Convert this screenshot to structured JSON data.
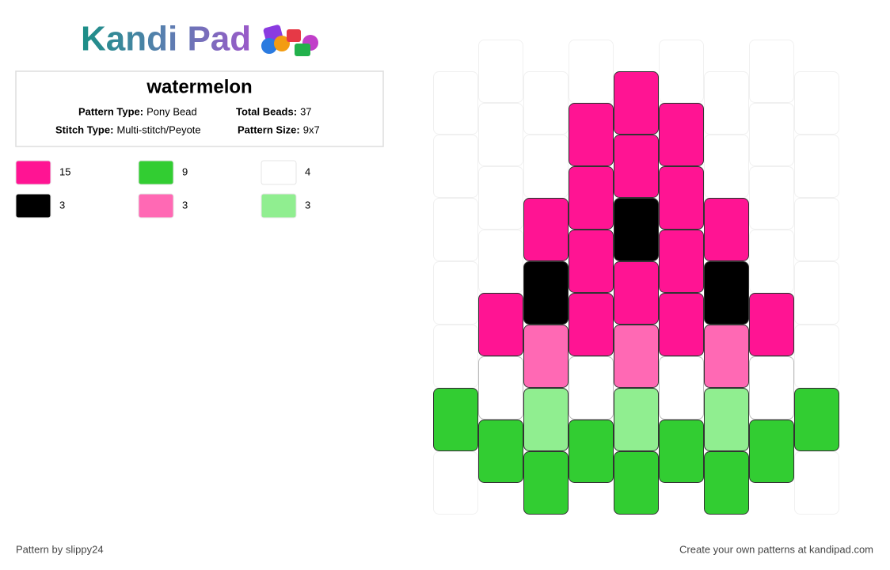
{
  "header": {
    "logo": "Kandi Pad"
  },
  "info": {
    "title": "watermelon",
    "fields": [
      {
        "label": "Pattern Type:",
        "value": "Pony Bead"
      },
      {
        "label": "Total Beads:",
        "value": 37
      },
      {
        "label": "Stitch Type:",
        "value": "Multi-stitch/Peyote"
      },
      {
        "label": "Pattern Size:",
        "value": "9x7"
      }
    ]
  },
  "legend": [
    {
      "color": "#ff1493",
      "count": 15
    },
    {
      "color": "#32cd32",
      "count": 9
    },
    {
      "color": "#ffffff",
      "count": 4
    },
    {
      "color": "#000000",
      "count": 3
    },
    {
      "color": "#ff69b4",
      "count": 3
    },
    {
      "color": "#90ee90",
      "count": 3
    }
  ],
  "pattern": {
    "columns": [
      [
        null,
        null,
        null,
        null,
        null,
        "#32cd32",
        null
      ],
      [
        null,
        null,
        null,
        null,
        "#ff1493",
        "#ffffff",
        "#32cd32"
      ],
      [
        null,
        null,
        "#ff1493",
        "#000000",
        "#ff69b4",
        "#90ee90",
        "#32cd32"
      ],
      [
        null,
        "#ff1493",
        "#ff1493",
        "#ff1493",
        "#ff1493",
        "#ffffff",
        "#32cd32"
      ],
      [
        "#ff1493",
        "#ff1493",
        "#000000",
        "#ff1493",
        "#ff69b4",
        "#90ee90",
        "#32cd32"
      ],
      [
        null,
        "#ff1493",
        "#ff1493",
        "#ff1493",
        "#ff1493",
        "#ffffff",
        "#32cd32"
      ],
      [
        null,
        null,
        "#ff1493",
        "#000000",
        "#ff69b4",
        "#90ee90",
        "#32cd32"
      ],
      [
        null,
        null,
        null,
        null,
        "#ff1493",
        "#ffffff",
        "#32cd32"
      ],
      [
        null,
        null,
        null,
        null,
        null,
        "#32cd32",
        null
      ]
    ]
  },
  "footer": {
    "left": "Pattern by slippy24",
    "right": "Create your own patterns at kandipad.com"
  }
}
